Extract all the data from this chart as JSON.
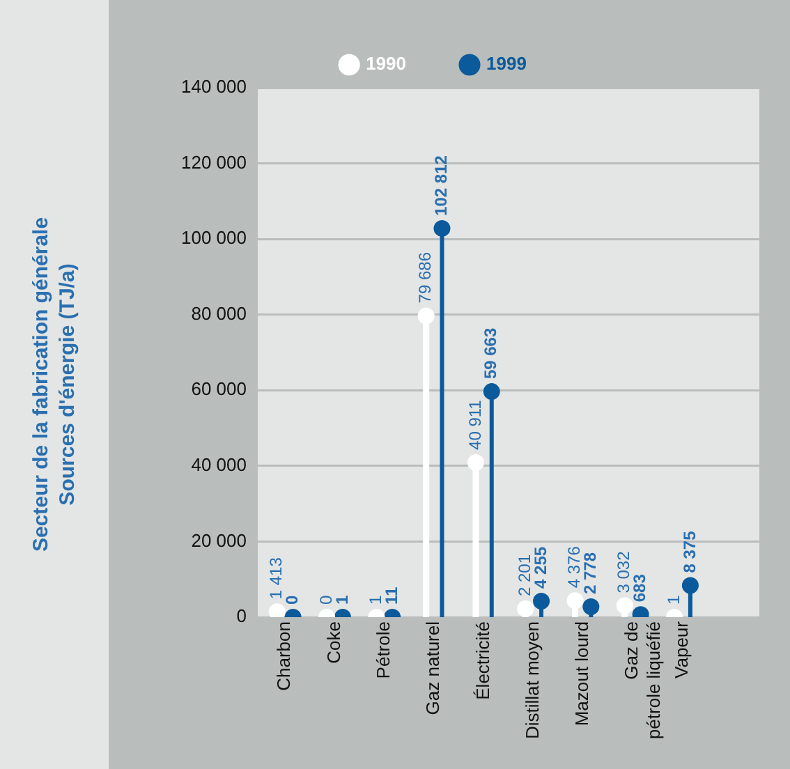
{
  "chart_data": {
    "type": "lollipop",
    "ylabel": "Secteur de la fabrication générale\nSources d'énergie (TJ/a)",
    "categories": [
      "Charbon",
      "Coke",
      "Pétrole",
      "Gaz naturel",
      "Électricité",
      "Distillat moyen",
      "Mazout lourd",
      "Gaz de\npétrole liquéfié",
      "Vapeur"
    ],
    "series": [
      {
        "name": "1990",
        "color": "#ffffff",
        "values": [
          1413,
          0,
          1,
          79686,
          40911,
          2201,
          4376,
          3032,
          1
        ],
        "value_labels": [
          "1 413",
          "0",
          "1",
          "79 686",
          "40 911",
          "2 201",
          "4 376",
          "3 032",
          "1"
        ]
      },
      {
        "name": "1999",
        "color": "#0b5a9b",
        "values": [
          0,
          1,
          11,
          102812,
          59663,
          4255,
          2778,
          683,
          8375
        ],
        "value_labels": [
          "0",
          "1",
          "11",
          "102 812",
          "59 663",
          "4 255",
          "2 778",
          "683",
          "8 375"
        ]
      }
    ],
    "ylim": [
      0,
      140000
    ],
    "yticks": [
      {
        "value": 0,
        "label": "0"
      },
      {
        "value": 20000,
        "label": "20 000"
      },
      {
        "value": 40000,
        "label": "40 000"
      },
      {
        "value": 60000,
        "label": "60 000"
      },
      {
        "value": 80000,
        "label": "80 000"
      },
      {
        "value": 100000,
        "label": "100 000"
      },
      {
        "value": 120000,
        "label": "120 000"
      },
      {
        "value": 140000,
        "label": "140 000"
      }
    ],
    "grid": "y",
    "legend": "top",
    "marker": "circle"
  }
}
